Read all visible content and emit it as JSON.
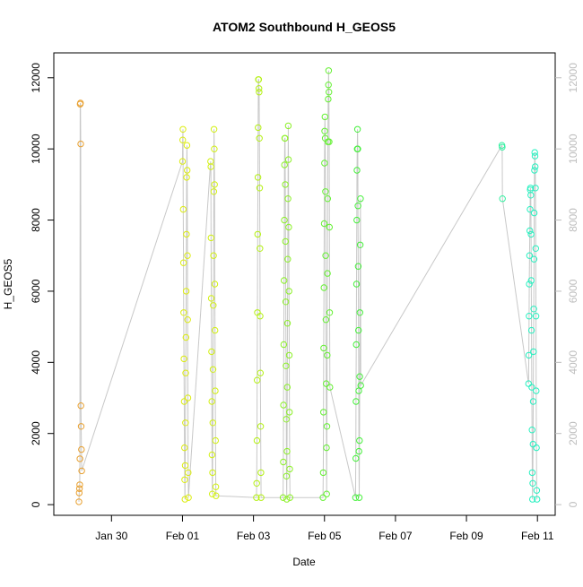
{
  "chart_data": {
    "type": "scatter",
    "title": "ATOM2 Southbound H_GEOS5",
    "xlabel": "Date",
    "ylabel": "H_GEOS5",
    "x_is_date": true,
    "xlim": [
      "2017-01-28T09:00",
      "2017-02-11T12:00"
    ],
    "ylim": [
      -300,
      12700
    ],
    "x_ticks": [
      {
        "date": "2017-01-30T00:00",
        "label": "Jan 30"
      },
      {
        "date": "2017-02-01T00:00",
        "label": "Feb 01"
      },
      {
        "date": "2017-02-03T00:00",
        "label": "Feb 03"
      },
      {
        "date": "2017-02-05T00:00",
        "label": "Feb 05"
      },
      {
        "date": "2017-02-07T00:00",
        "label": "Feb 07"
      },
      {
        "date": "2017-02-09T00:00",
        "label": "Feb 09"
      },
      {
        "date": "2017-02-11T00:00",
        "label": "Feb 11"
      }
    ],
    "y_ticks": [
      0,
      2000,
      4000,
      6000,
      8000,
      10000,
      12000
    ],
    "right_axis": true,
    "grid": false,
    "legend": "none",
    "line_color": "#c8c8c8",
    "series": [
      {
        "color": "#e8a030",
        "points": [
          [
            "2017-01-29T02:00",
            80
          ],
          [
            "2017-01-29T02:10",
            330
          ],
          [
            "2017-01-29T02:20",
            450
          ],
          [
            "2017-01-29T02:30",
            560
          ],
          [
            "2017-01-29T02:40",
            1290
          ],
          [
            "2017-01-29T02:50",
            11260
          ],
          [
            "2017-01-29T03:00",
            11290
          ],
          [
            "2017-01-29T03:10",
            10140
          ],
          [
            "2017-01-29T03:20",
            2780
          ],
          [
            "2017-01-29T03:30",
            2200
          ],
          [
            "2017-01-29T03:40",
            1550
          ],
          [
            "2017-01-29T03:50",
            950
          ]
        ]
      },
      {
        "color": "#dcec10",
        "points": [
          [
            "2017-02-01T00:00",
            9650
          ],
          [
            "2017-02-01T00:10",
            10250
          ],
          [
            "2017-02-01T00:20",
            10550
          ],
          [
            "2017-02-01T00:30",
            8300
          ],
          [
            "2017-02-01T00:40",
            6800
          ],
          [
            "2017-02-01T00:50",
            5400
          ],
          [
            "2017-02-01T01:00",
            4100
          ],
          [
            "2017-02-01T01:10",
            2900
          ],
          [
            "2017-02-01T01:20",
            1600
          ],
          [
            "2017-02-01T01:30",
            700
          ],
          [
            "2017-02-01T01:40",
            150
          ],
          [
            "2017-02-01T01:50",
            1100
          ],
          [
            "2017-02-01T02:00",
            2300
          ],
          [
            "2017-02-01T02:10",
            3700
          ],
          [
            "2017-02-01T02:20",
            4700
          ],
          [
            "2017-02-01T02:30",
            6000
          ],
          [
            "2017-02-01T02:40",
            7600
          ],
          [
            "2017-02-01T02:50",
            9200
          ],
          [
            "2017-02-01T03:00",
            10100
          ],
          [
            "2017-02-01T03:10",
            9400
          ],
          [
            "2017-02-01T03:20",
            7000
          ],
          [
            "2017-02-01T03:30",
            5200
          ],
          [
            "2017-02-01T03:40",
            3000
          ],
          [
            "2017-02-01T03:50",
            900
          ],
          [
            "2017-02-01T04:00",
            200
          ]
        ]
      },
      {
        "color": "#d2f012",
        "points": [
          [
            "2017-02-01T19:00",
            9650
          ],
          [
            "2017-02-01T19:10",
            9500
          ],
          [
            "2017-02-01T19:20",
            7500
          ],
          [
            "2017-02-01T19:30",
            5800
          ],
          [
            "2017-02-01T19:40",
            4300
          ],
          [
            "2017-02-01T19:50",
            2900
          ],
          [
            "2017-02-01T20:00",
            1400
          ],
          [
            "2017-02-01T20:10",
            300
          ],
          [
            "2017-02-01T20:20",
            900
          ],
          [
            "2017-02-01T20:30",
            2300
          ],
          [
            "2017-02-01T20:40",
            3800
          ],
          [
            "2017-02-01T20:50",
            5600
          ],
          [
            "2017-02-01T21:00",
            7000
          ],
          [
            "2017-02-01T21:10",
            8800
          ],
          [
            "2017-02-01T21:20",
            10550
          ],
          [
            "2017-02-01T21:30",
            10000
          ],
          [
            "2017-02-01T21:40",
            9000
          ],
          [
            "2017-02-01T21:50",
            6200
          ],
          [
            "2017-02-01T22:00",
            4900
          ],
          [
            "2017-02-01T22:10",
            3200
          ],
          [
            "2017-02-01T22:20",
            1800
          ],
          [
            "2017-02-01T22:30",
            500
          ],
          [
            "2017-02-01T22:40",
            250
          ]
        ]
      },
      {
        "color": "#b4f014",
        "points": [
          [
            "2017-02-03T02:00",
            200
          ],
          [
            "2017-02-03T02:10",
            600
          ],
          [
            "2017-02-03T02:20",
            1800
          ],
          [
            "2017-02-03T02:30",
            3500
          ],
          [
            "2017-02-03T02:40",
            5400
          ],
          [
            "2017-02-03T02:50",
            7600
          ],
          [
            "2017-02-03T03:00",
            9200
          ],
          [
            "2017-02-03T03:10",
            10600
          ],
          [
            "2017-02-03T03:20",
            11950
          ],
          [
            "2017-02-03T03:30",
            11950
          ],
          [
            "2017-02-03T03:40",
            11700
          ],
          [
            "2017-02-03T03:50",
            11600
          ],
          [
            "2017-02-03T04:00",
            10300
          ],
          [
            "2017-02-03T04:10",
            8900
          ],
          [
            "2017-02-03T04:20",
            7200
          ],
          [
            "2017-02-03T04:30",
            5300
          ],
          [
            "2017-02-03T04:40",
            3700
          ],
          [
            "2017-02-03T04:50",
            2200
          ],
          [
            "2017-02-03T05:00",
            900
          ],
          [
            "2017-02-03T05:10",
            200
          ]
        ]
      },
      {
        "color": "#8cf028",
        "points": [
          [
            "2017-02-03T20:00",
            200
          ],
          [
            "2017-02-03T20:10",
            1200
          ],
          [
            "2017-02-03T20:20",
            2800
          ],
          [
            "2017-02-03T20:30",
            4500
          ],
          [
            "2017-02-03T20:40",
            6300
          ],
          [
            "2017-02-03T20:50",
            8000
          ],
          [
            "2017-02-03T21:00",
            9550
          ],
          [
            "2017-02-03T21:10",
            10300
          ],
          [
            "2017-02-03T21:20",
            10300
          ],
          [
            "2017-02-03T21:30",
            9000
          ],
          [
            "2017-02-03T21:40",
            7400
          ],
          [
            "2017-02-03T21:50",
            5700
          ],
          [
            "2017-02-03T22:00",
            3900
          ],
          [
            "2017-02-03T22:10",
            2400
          ],
          [
            "2017-02-03T22:20",
            800
          ],
          [
            "2017-02-03T22:30",
            150
          ],
          [
            "2017-02-03T22:40",
            1500
          ],
          [
            "2017-02-03T22:50",
            3300
          ],
          [
            "2017-02-03T23:00",
            5100
          ],
          [
            "2017-02-03T23:10",
            6900
          ],
          [
            "2017-02-03T23:20",
            8600
          ],
          [
            "2017-02-03T23:30",
            10650
          ],
          [
            "2017-02-03T23:40",
            9700
          ],
          [
            "2017-02-03T23:50",
            7800
          ],
          [
            "2017-02-04T00:00",
            6000
          ],
          [
            "2017-02-04T00:10",
            4200
          ],
          [
            "2017-02-04T00:20",
            2600
          ],
          [
            "2017-02-04T00:30",
            1000
          ],
          [
            "2017-02-04T00:40",
            200
          ]
        ]
      },
      {
        "color": "#64f032",
        "points": [
          [
            "2017-02-04T23:00",
            200
          ],
          [
            "2017-02-04T23:10",
            900
          ],
          [
            "2017-02-04T23:20",
            2600
          ],
          [
            "2017-02-04T23:30",
            4400
          ],
          [
            "2017-02-04T23:40",
            6100
          ],
          [
            "2017-02-04T23:50",
            7900
          ],
          [
            "2017-02-05T00:00",
            9600
          ],
          [
            "2017-02-05T00:10",
            10500
          ],
          [
            "2017-02-05T00:20",
            10900
          ],
          [
            "2017-02-05T00:30",
            10300
          ],
          [
            "2017-02-05T00:40",
            8800
          ],
          [
            "2017-02-05T00:50",
            7000
          ],
          [
            "2017-02-05T01:00",
            5200
          ],
          [
            "2017-02-05T01:10",
            3400
          ],
          [
            "2017-02-05T01:20",
            1600
          ],
          [
            "2017-02-05T01:30",
            300
          ],
          [
            "2017-02-05T01:40",
            2200
          ],
          [
            "2017-02-05T01:50",
            4200
          ],
          [
            "2017-02-05T02:00",
            6500
          ],
          [
            "2017-02-05T02:10",
            8600
          ],
          [
            "2017-02-05T02:20",
            10200
          ],
          [
            "2017-02-05T02:30",
            11400
          ],
          [
            "2017-02-05T02:40",
            11800
          ],
          [
            "2017-02-05T02:50",
            12200
          ],
          [
            "2017-02-05T03:00",
            11600
          ],
          [
            "2017-02-05T03:10",
            10200
          ],
          [
            "2017-02-05T03:20",
            7800
          ],
          [
            "2017-02-05T03:30",
            5400
          ],
          [
            "2017-02-05T03:40",
            3300
          ]
        ]
      },
      {
        "color": "#46f03c",
        "points": [
          [
            "2017-02-05T21:00",
            200
          ],
          [
            "2017-02-05T21:10",
            1300
          ],
          [
            "2017-02-05T21:20",
            2900
          ],
          [
            "2017-02-05T21:30",
            4500
          ],
          [
            "2017-02-05T21:40",
            6200
          ],
          [
            "2017-02-05T21:50",
            8000
          ],
          [
            "2017-02-05T22:00",
            9400
          ],
          [
            "2017-02-05T22:10",
            10000
          ],
          [
            "2017-02-05T22:20",
            10550
          ],
          [
            "2017-02-05T22:30",
            10000
          ],
          [
            "2017-02-05T22:40",
            8400
          ],
          [
            "2017-02-05T22:50",
            6700
          ],
          [
            "2017-02-05T23:00",
            4900
          ],
          [
            "2017-02-05T23:10",
            3200
          ],
          [
            "2017-02-05T23:20",
            1500
          ],
          [
            "2017-02-05T23:30",
            200
          ],
          [
            "2017-02-05T23:40",
            1800
          ],
          [
            "2017-02-05T23:50",
            3600
          ],
          [
            "2017-02-06T00:00",
            5400
          ],
          [
            "2017-02-06T00:10",
            7300
          ],
          [
            "2017-02-06T00:20",
            8600
          ],
          [
            "2017-02-06T00:30",
            3350
          ]
        ]
      },
      {
        "color": "#32f0a0",
        "points": [
          [
            "2017-02-10T00:00",
            10100
          ],
          [
            "2017-02-10T00:10",
            10050
          ],
          [
            "2017-02-10T00:20",
            8600
          ]
        ]
      },
      {
        "color": "#28f0c0",
        "points": [
          [
            "2017-02-10T18:00",
            3400
          ],
          [
            "2017-02-10T18:10",
            4200
          ],
          [
            "2017-02-10T18:20",
            5300
          ],
          [
            "2017-02-10T18:30",
            6200
          ],
          [
            "2017-02-10T18:40",
            7000
          ],
          [
            "2017-02-10T18:50",
            7700
          ],
          [
            "2017-02-10T19:00",
            8300
          ],
          [
            "2017-02-10T19:10",
            8850
          ],
          [
            "2017-02-10T19:20",
            8900
          ],
          [
            "2017-02-10T19:30",
            8700
          ],
          [
            "2017-02-10T19:40",
            7600
          ],
          [
            "2017-02-10T19:50",
            6300
          ],
          [
            "2017-02-10T20:00",
            4900
          ],
          [
            "2017-02-10T20:10",
            3300
          ],
          [
            "2017-02-10T20:20",
            2100
          ],
          [
            "2017-02-10T20:30",
            900
          ],
          [
            "2017-02-10T20:40",
            150
          ],
          [
            "2017-02-10T20:50",
            600
          ],
          [
            "2017-02-10T21:00",
            1700
          ],
          [
            "2017-02-10T21:10",
            2900
          ],
          [
            "2017-02-10T21:20",
            4300
          ],
          [
            "2017-02-10T21:30",
            5500
          ],
          [
            "2017-02-10T21:40",
            6900
          ],
          [
            "2017-02-10T21:50",
            8200
          ],
          [
            "2017-02-10T22:00",
            9400
          ],
          [
            "2017-02-10T22:10",
            9900
          ],
          [
            "2017-02-10T22:20",
            9800
          ],
          [
            "2017-02-10T22:30",
            9500
          ],
          [
            "2017-02-10T22:40",
            8900
          ],
          [
            "2017-02-10T22:50",
            7200
          ],
          [
            "2017-02-10T23:00",
            5300
          ],
          [
            "2017-02-10T23:10",
            3200
          ],
          [
            "2017-02-10T23:20",
            1600
          ],
          [
            "2017-02-10T23:30",
            400
          ],
          [
            "2017-02-10T23:40",
            150
          ]
        ]
      }
    ]
  }
}
